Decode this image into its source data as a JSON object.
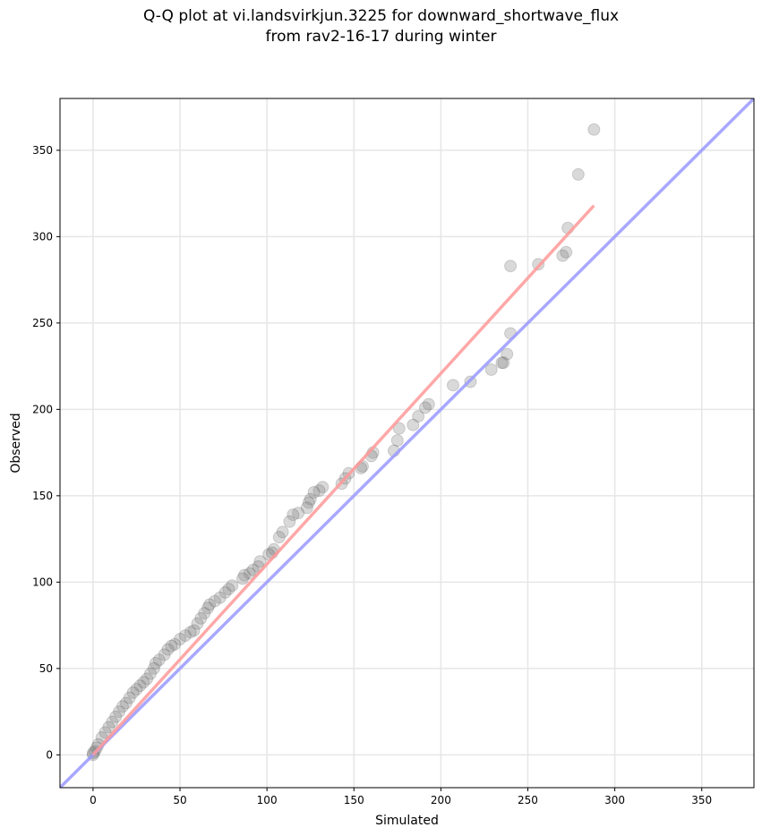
{
  "chart_data": {
    "type": "scatter",
    "title": [
      "Q-Q plot at vi.landsvirkjun.3225 for downward_shortwave_flux",
      "from rav2-16-17 during winter"
    ],
    "xlabel": "Simulated",
    "ylabel": "Observed",
    "xlim": [
      -19,
      380
    ],
    "ylim": [
      -19,
      380
    ],
    "xticks": [
      0,
      50,
      100,
      150,
      200,
      250,
      300,
      350
    ],
    "yticks": [
      0,
      50,
      100,
      150,
      200,
      250,
      300,
      350
    ],
    "grid": true,
    "points": [
      [
        288,
        362
      ],
      [
        279,
        336
      ],
      [
        273,
        305
      ],
      [
        272,
        291
      ],
      [
        270,
        289
      ],
      [
        256,
        284
      ],
      [
        240,
        283
      ],
      [
        240,
        244
      ],
      [
        238,
        232
      ],
      [
        236,
        227
      ],
      [
        235,
        227
      ],
      [
        229,
        223
      ],
      [
        217,
        216
      ],
      [
        207,
        214
      ],
      [
        193,
        203
      ],
      [
        191,
        201
      ],
      [
        187,
        196
      ],
      [
        184,
        191
      ],
      [
        176,
        189
      ],
      [
        175,
        182
      ],
      [
        173,
        176
      ],
      [
        161,
        175
      ],
      [
        160,
        173
      ],
      [
        155,
        167
      ],
      [
        154,
        166
      ],
      [
        147,
        163
      ],
      [
        145,
        160
      ],
      [
        143,
        157
      ],
      [
        132,
        155
      ],
      [
        130,
        153
      ],
      [
        127,
        152
      ],
      [
        125,
        148
      ],
      [
        124,
        146
      ],
      [
        123,
        143
      ],
      [
        118,
        140
      ],
      [
        115,
        139
      ],
      [
        113,
        135
      ],
      [
        109,
        129
      ],
      [
        107,
        126
      ],
      [
        104,
        119
      ],
      [
        103,
        117
      ],
      [
        101,
        116
      ],
      [
        96,
        112
      ],
      [
        95,
        109
      ],
      [
        92,
        107
      ],
      [
        90,
        105
      ],
      [
        87,
        104
      ],
      [
        86,
        102
      ],
      [
        80,
        98
      ],
      [
        78,
        96
      ],
      [
        76,
        94
      ],
      [
        73,
        91
      ],
      [
        70,
        89
      ],
      [
        67,
        87
      ],
      [
        66,
        85
      ],
      [
        64,
        82
      ],
      [
        62,
        79
      ],
      [
        60,
        76
      ],
      [
        58,
        72
      ],
      [
        56,
        71
      ],
      [
        53,
        69
      ],
      [
        50,
        67
      ],
      [
        47,
        64
      ],
      [
        45,
        63
      ],
      [
        43,
        61
      ],
      [
        41,
        58
      ],
      [
        38,
        55
      ],
      [
        36,
        53
      ],
      [
        35,
        50
      ],
      [
        33,
        47
      ],
      [
        31,
        44
      ],
      [
        29,
        42
      ],
      [
        27,
        40
      ],
      [
        25,
        38
      ],
      [
        23,
        36
      ],
      [
        21,
        33
      ],
      [
        19,
        30
      ],
      [
        17,
        28
      ],
      [
        15,
        25
      ],
      [
        13,
        22
      ],
      [
        11,
        19
      ],
      [
        9,
        16
      ],
      [
        7,
        13
      ],
      [
        5,
        10
      ],
      [
        3,
        6
      ],
      [
        2,
        4
      ],
      [
        1,
        2
      ],
      [
        0,
        0
      ],
      [
        0,
        1
      ]
    ],
    "fit_line": {
      "from": [
        0,
        0
      ],
      "to": [
        288,
        318
      ],
      "color": "#ff9999"
    },
    "identity_line": {
      "color": "#9999ff"
    }
  }
}
